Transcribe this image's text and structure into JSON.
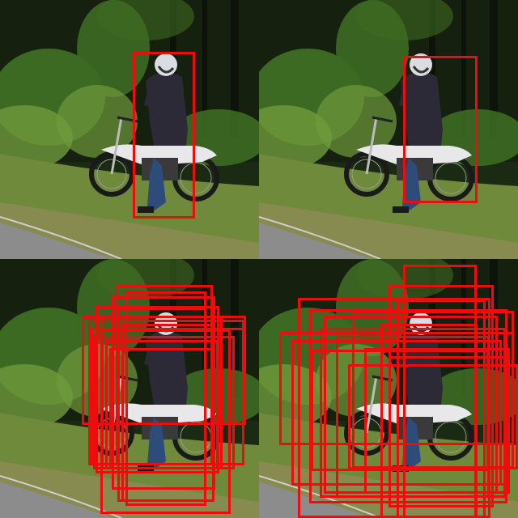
{
  "image": {
    "description_panels": 4,
    "box_color": "#ee0d0d",
    "scene_colors": {
      "foliage_dark": "#1b2a12",
      "foliage_mid": "#3d6a22",
      "foliage_light": "#6f9a3c",
      "grass": "#6f8a3a",
      "road": "#8c8c8c",
      "sky_gaps": "#0b0f08",
      "jacket": "#2b2a36",
      "jeans": "#2d4c7a",
      "helmet": "#d9dde2",
      "bike_tank": "#e8e8ea",
      "tire": "#1a1a1a"
    }
  },
  "panels": [
    {
      "id": "top-left",
      "label": "single-box",
      "box_count": 1
    },
    {
      "id": "top-right",
      "label": "single-box",
      "box_count": 1
    },
    {
      "id": "bottom-left",
      "label": "many-boxes",
      "box_count": 14
    },
    {
      "id": "bottom-right",
      "label": "many-boxes",
      "box_count": 16
    }
  ]
}
